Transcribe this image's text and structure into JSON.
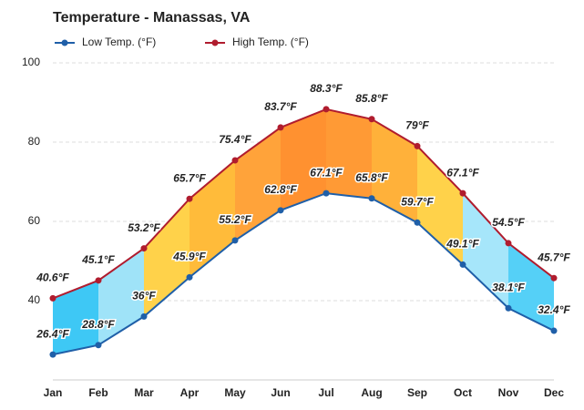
{
  "chart_data": {
    "type": "line",
    "title": "Temperature - Manassas, VA",
    "categories": [
      "Jan",
      "Feb",
      "Mar",
      "Apr",
      "May",
      "Jun",
      "Jul",
      "Aug",
      "Sep",
      "Oct",
      "Nov",
      "Dec"
    ],
    "series": [
      {
        "name": "Low Temp. (°F)",
        "color": "#1f5fa8",
        "values": [
          26.4,
          28.8,
          36,
          45.9,
          55.2,
          62.8,
          67.1,
          65.8,
          59.7,
          49.1,
          38.1,
          32.4
        ],
        "value_labels": [
          "26.4°F",
          "28.8°F",
          "36°F",
          "45.9°F",
          "55.2°F",
          "62.8°F",
          "67.1°F",
          "65.8°F",
          "59.7°F",
          "49.1°F",
          "38.1°F",
          "32.4°F"
        ]
      },
      {
        "name": "High Temp. (°F)",
        "color": "#b01c2e",
        "values": [
          40.6,
          45.1,
          53.2,
          65.7,
          75.4,
          83.7,
          88.3,
          85.8,
          79,
          67.1,
          54.5,
          45.7
        ],
        "value_labels": [
          "40.6°F",
          "45.1°F",
          "53.2°F",
          "65.7°F",
          "75.4°F",
          "83.7°F",
          "88.3°F",
          "85.8°F",
          "79°F",
          "67.1°F",
          "54.5°F",
          "45.7°F"
        ]
      }
    ],
    "band_colors": [
      "#3ec8f5",
      "#9fe3f8",
      "#ffd24a",
      "#ffbb3a",
      "#ffa33a",
      "#ff9130",
      "#ff9a35",
      "#ffb13a",
      "#ffd24a",
      "#a6e6fa",
      "#55d0f7"
    ],
    "ylim": [
      20,
      100
    ],
    "yticks": [
      40,
      60,
      80,
      100
    ],
    "grid": true
  }
}
